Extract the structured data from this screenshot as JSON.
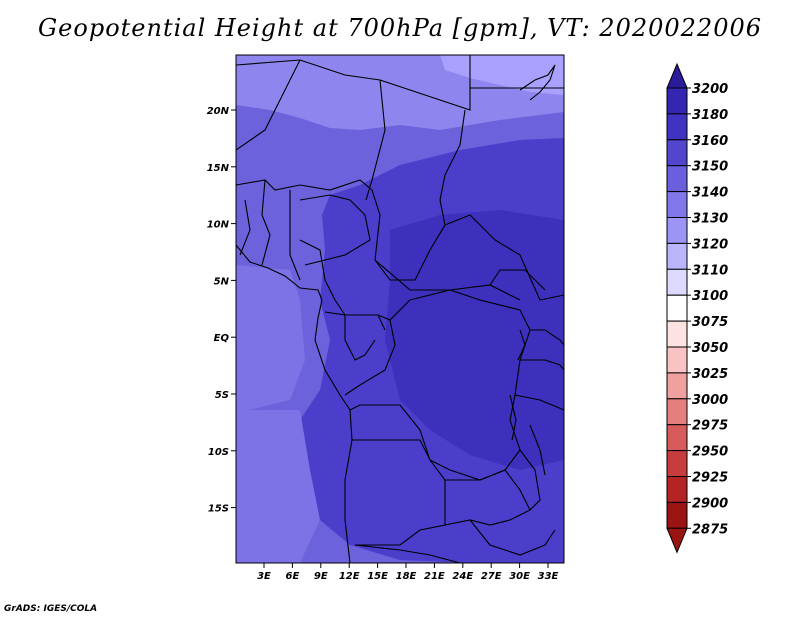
{
  "title": "Geopotential Height at 700hPa [gpm], VT: 2020022006",
  "credit": "GrADS: IGES/COLA",
  "map": {
    "lon_ticks": [
      "3E",
      "6E",
      "9E",
      "12E",
      "15E",
      "18E",
      "21E",
      "24E",
      "27E",
      "30E",
      "33E"
    ],
    "lat_ticks": [
      "20N",
      "15N",
      "10N",
      "5N",
      "EQ",
      "5S",
      "10S",
      "15S"
    ],
    "colors": {
      "very_light": "#a9a0ff",
      "light": "#8f85ee",
      "medium": "#6c62dc",
      "deep": "#4a3ecb",
      "deepest": "#3c30bd",
      "border": "#000000"
    }
  },
  "colorbar": {
    "labels": [
      "3200",
      "3180",
      "3160",
      "3150",
      "3140",
      "3130",
      "3120",
      "3110",
      "3100",
      "3075",
      "3050",
      "3025",
      "3000",
      "2975",
      "2950",
      "2925",
      "2900",
      "2875"
    ],
    "colors": [
      "#2a1b9a",
      "#3426b0",
      "#3f33c2",
      "#5246cf",
      "#6a5fdc",
      "#8277ea",
      "#9d95f5",
      "#bbb6fb",
      "#dcdafd",
      "#ffffff",
      "#fde2e2",
      "#f9c3c3",
      "#f1a0a0",
      "#e67e7e",
      "#d85b5b",
      "#c73d3d",
      "#b42424",
      "#9a1414"
    ]
  }
}
